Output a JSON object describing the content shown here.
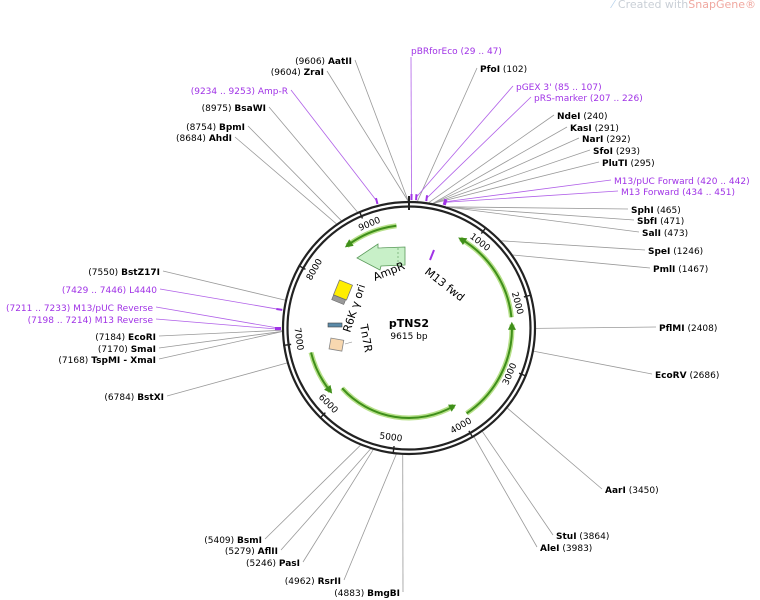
{
  "watermark": {
    "prefix": "Created with ",
    "brand": "SnapGene®",
    "icon": "snapgene-logo-icon"
  },
  "plasmid": {
    "name": "pTNS2",
    "length_label": "9615 bp",
    "length": 9615
  },
  "ticks": [
    "1000",
    "2000",
    "3000",
    "4000",
    "5000",
    "6000",
    "7000",
    "8000",
    "9000"
  ],
  "colors": {
    "enzyme": "#000000",
    "primer": "#a033e6",
    "orf": "#3f8f1a",
    "orf_glow": "#b7e08a",
    "backbone": "#222222"
  },
  "features": {
    "ampr": {
      "label": "AmpR",
      "color": "#c8f0c8"
    },
    "m13_fwd": {
      "label": "M13 fwd",
      "color": "#a033e6"
    },
    "r6k_ori": {
      "label": "R6K γ ori",
      "color": "#ffee00"
    },
    "tn7r": {
      "label": "Tn7R",
      "color": "#f8d8b0"
    }
  },
  "enzymes": [
    {
      "id": "pfoi",
      "name": "PfoI",
      "pos": 102
    },
    {
      "id": "ndei",
      "name": "NdeI",
      "pos": 240
    },
    {
      "id": "kasi",
      "name": "KasI",
      "pos": 291
    },
    {
      "id": "nari",
      "name": "NarI",
      "pos": 292
    },
    {
      "id": "sfoi",
      "name": "SfoI",
      "pos": 293
    },
    {
      "id": "pluti",
      "name": "PluTI",
      "pos": 295
    },
    {
      "id": "sphi",
      "name": "SphI",
      "pos": 465
    },
    {
      "id": "sbfi",
      "name": "SbfI",
      "pos": 471
    },
    {
      "id": "sali",
      "name": "SalI",
      "pos": 473
    },
    {
      "id": "spei",
      "name": "SpeI",
      "pos": 1246
    },
    {
      "id": "pmli",
      "name": "PmlI",
      "pos": 1467
    },
    {
      "id": "pflmi",
      "name": "PflMI",
      "pos": 2408
    },
    {
      "id": "ecorv",
      "name": "EcoRV",
      "pos": 2686
    },
    {
      "id": "aari",
      "name": "AarI",
      "pos": 3450
    },
    {
      "id": "stui",
      "name": "StuI",
      "pos": 3864
    },
    {
      "id": "alei",
      "name": "AleI",
      "pos": 3983
    },
    {
      "id": "bmgbi",
      "name": "BmgBI",
      "pos": 4883
    },
    {
      "id": "rsrii",
      "name": "RsrII",
      "pos": 4962
    },
    {
      "id": "pasi",
      "name": "PasI",
      "pos": 5246
    },
    {
      "id": "aflii",
      "name": "AflII",
      "pos": 5279
    },
    {
      "id": "bsmi",
      "name": "BsmI",
      "pos": 5409
    },
    {
      "id": "bstxi",
      "name": "BstXI",
      "pos": 6784
    },
    {
      "id": "tspmi",
      "name": "TspMI  - XmaI",
      "pos": 7168
    },
    {
      "id": "smai",
      "name": "SmaI",
      "pos": 7170
    },
    {
      "id": "ecori",
      "name": "EcoRI",
      "pos": 7184
    },
    {
      "id": "bstz17i",
      "name": "BstZ17I",
      "pos": 7550
    },
    {
      "id": "ahdi",
      "name": "AhdI",
      "pos": 8684
    },
    {
      "id": "bpmi",
      "name": "BpmI",
      "pos": 8754
    },
    {
      "id": "bsawi",
      "name": "BsaWI",
      "pos": 8975
    },
    {
      "id": "zrai",
      "name": "ZraI",
      "pos": 9604
    },
    {
      "id": "aatii",
      "name": "AatII",
      "pos": 9606
    }
  ],
  "primers": [
    {
      "id": "pbrforeco",
      "name": "pBRforEco",
      "range": "29 .. 47",
      "start": 29
    },
    {
      "id": "pgex3",
      "name": "pGEX 3'",
      "range": "85 .. 107",
      "start": 85
    },
    {
      "id": "prsmarker",
      "name": "pRS-marker",
      "range": "207 .. 226",
      "start": 207
    },
    {
      "id": "m13puc_fwd",
      "name": "M13/pUC Forward",
      "range": "420 .. 442",
      "start": 420
    },
    {
      "id": "m13_fwd",
      "name": "M13 Forward",
      "range": "434 .. 451",
      "start": 434
    },
    {
      "id": "l4440",
      "name": "L4440",
      "range": "7429 .. 7446",
      "start": 7429
    },
    {
      "id": "m13puc_rev",
      "name": "M13/pUC Reverse",
      "range": "7211 .. 7233",
      "start": 7211
    },
    {
      "id": "m13_rev",
      "name": "M13 Reverse",
      "range": "7198 .. 7214",
      "start": 7198
    },
    {
      "id": "ampr_primer",
      "name": "Amp-R",
      "range": "9234 .. 9253",
      "start": 9234
    }
  ]
}
